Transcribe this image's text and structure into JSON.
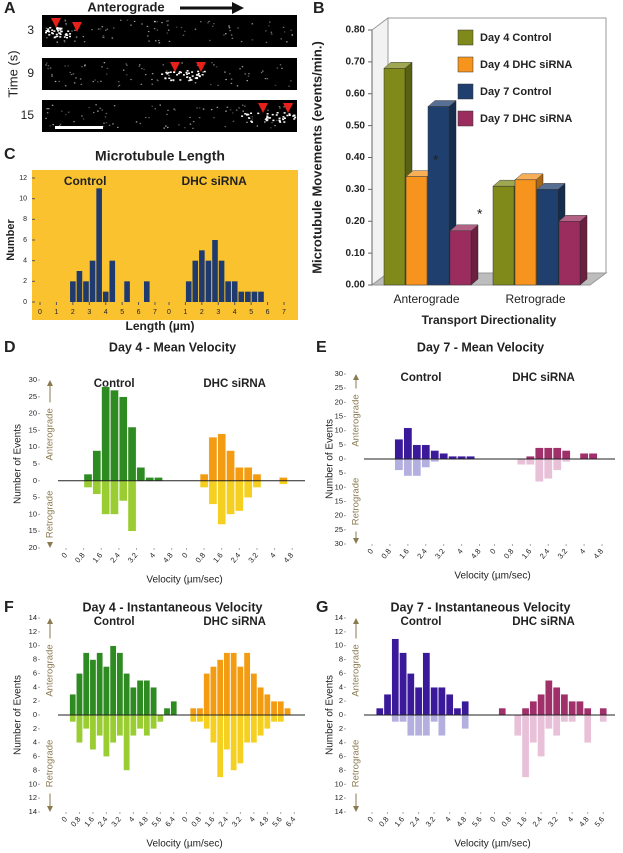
{
  "panel_a": {
    "letter": "A",
    "title": "Anterograde",
    "y_label": "Time (s)",
    "times": [
      3,
      9,
      15
    ]
  },
  "chart_data": [
    {
      "panel": "B",
      "type": "bar3d",
      "y_label": "Microtubule Movements (events/min.)",
      "x_label": "Transport Directionality",
      "categories": [
        "Anterograde",
        "Retrograde"
      ],
      "series": [
        {
          "name": "Day 4 Control",
          "color": "#7f8a1a",
          "values": [
            0.68,
            0.31
          ]
        },
        {
          "name": "Day 4 DHC siRNA",
          "color": "#f7941d",
          "values": [
            0.34,
            0.33
          ]
        },
        {
          "name": "Day 7 Control",
          "color": "#1f3f6e",
          "values": [
            0.56,
            0.3
          ]
        },
        {
          "name": "Day 7 DHC siRNA",
          "color": "#9b2d5e",
          "values": [
            0.17,
            0.2
          ]
        }
      ],
      "ylim": [
        0,
        0.8
      ],
      "yticks": [
        {
          "value": 0,
          "label": "0.00"
        },
        {
          "value": 0.1,
          "label": "0.10"
        },
        {
          "value": 0.2,
          "label": "0.20"
        },
        {
          "value": 0.3,
          "label": "0.30"
        },
        {
          "value": 0.4,
          "label": "0.40"
        },
        {
          "value": 0.5,
          "label": "0.50"
        },
        {
          "value": 0.6,
          "label": "0.60"
        },
        {
          "value": 0.7,
          "label": "0.70"
        },
        {
          "value": 0.8,
          "label": "0.80"
        }
      ],
      "legend": "top-right",
      "annotations": [
        {
          "text": "*",
          "series": "Day 4 DHC siRNA",
          "category": "Anterograde"
        },
        {
          "text": "*",
          "series": "Day 7 DHC siRNA",
          "category": "Anterograde"
        }
      ]
    },
    {
      "panel": "C",
      "type": "histogram",
      "title": "Microtubule Length",
      "x_label": "Length (µm)",
      "y_label": "Number",
      "background": "#f9c22e",
      "ylim": [
        0,
        12
      ],
      "yticks": [
        0,
        2,
        4,
        6,
        8,
        10,
        12
      ],
      "groups": [
        {
          "name": "Control",
          "color": "#1f3a6e",
          "xlim": [
            0,
            7
          ],
          "xticks": [
            0,
            1,
            2,
            3,
            4,
            5,
            6,
            7
          ],
          "x": [
            2.0,
            2.4,
            2.8,
            3.2,
            3.6,
            4.0,
            4.4,
            5.3,
            6.5
          ],
          "values": [
            2,
            3,
            2,
            4,
            11,
            1,
            4,
            2,
            2
          ]
        },
        {
          "name": "DHC siRNA",
          "color": "#1f3a6e",
          "xlim": [
            0,
            7
          ],
          "xticks": [
            0,
            1,
            2,
            3,
            4,
            5,
            6,
            7
          ],
          "x": [
            1.2,
            1.6,
            2.0,
            2.4,
            2.8,
            3.2,
            3.6,
            4.0,
            4.4,
            4.8,
            5.2,
            5.6
          ],
          "values": [
            2,
            4,
            5,
            4,
            6,
            4,
            2,
            2,
            1,
            1,
            1,
            1
          ]
        }
      ]
    },
    {
      "panel": "D",
      "type": "mirrored",
      "title": "Day 4 - Mean Velocity",
      "y_label": "Number of Events",
      "x_label": "Velocity (µm/sec)",
      "up_label": "Anterograde",
      "down_label": "Retrograde",
      "ylim": [
        -20,
        30
      ],
      "yticks": [
        30,
        25,
        20,
        15,
        10,
        5,
        0,
        {
          "value": -5,
          "label": "5"
        },
        {
          "value": -10,
          "label": "10"
        },
        {
          "value": -15,
          "label": "15"
        },
        {
          "value": -20,
          "label": "20"
        }
      ],
      "groups": [
        {
          "name": "Control",
          "xlim": [
            0,
            5.2
          ],
          "xticks": [
            0,
            0.8,
            1.6,
            2.4,
            3.2,
            4,
            4.8
          ],
          "x": [
            1.0,
            1.4,
            1.8,
            2.2,
            2.6,
            3.0,
            3.4,
            3.8,
            4.2
          ],
          "up": {
            "color": "#2e8b22",
            "values": [
              2,
              9,
              28,
              27,
              25,
              16,
              4,
              1,
              1
            ]
          },
          "down": {
            "color": "#9acd32",
            "values": [
              -2,
              -4,
              -10,
              -10,
              -6,
              -15,
              0,
              0,
              0
            ]
          }
        },
        {
          "name": "DHC siRNA",
          "xlim": [
            0,
            5.2
          ],
          "xticks": [
            0,
            0.8,
            1.6,
            2.4,
            3.2,
            4,
            4.8
          ],
          "x": [
            0.8,
            1.2,
            1.6,
            2.0,
            2.4,
            2.8,
            3.2,
            3.6,
            4.4
          ],
          "up": {
            "color": "#f39c12",
            "values": [
              2,
              13,
              14,
              9,
              4,
              4,
              2,
              0,
              1
            ]
          },
          "down": {
            "color": "#f5d020",
            "values": [
              -2,
              -7,
              -13,
              -10,
              -9,
              -5,
              -2,
              0,
              -1
            ]
          }
        }
      ]
    },
    {
      "panel": "E",
      "type": "mirrored",
      "title": "Day 7 - Mean Velocity",
      "y_label": "Number of Events",
      "x_label": "Velocity (µm/sec)",
      "up_label": "Anterograde",
      "down_label": "Retrograde",
      "ylim": [
        -30,
        30
      ],
      "yticks": [
        30,
        25,
        20,
        15,
        10,
        5,
        0,
        {
          "value": -5,
          "label": "5"
        },
        {
          "value": -10,
          "label": "10"
        },
        {
          "value": -15,
          "label": "15"
        },
        {
          "value": -20,
          "label": "20"
        },
        {
          "value": -25,
          "label": "25"
        },
        {
          "value": -30,
          "label": "30"
        }
      ],
      "groups": [
        {
          "name": "Control",
          "xlim": [
            0,
            5.2
          ],
          "xticks": [
            0,
            0.8,
            1.6,
            2.4,
            3.2,
            4,
            4.8
          ],
          "x": [
            1.2,
            1.6,
            2.0,
            2.4,
            2.8,
            3.2,
            3.6,
            4.0,
            4.4
          ],
          "up": {
            "color": "#3a1a9a",
            "values": [
              7,
              11,
              5,
              5,
              3,
              2,
              1,
              1,
              1
            ]
          },
          "down": {
            "color": "#b3b0e0",
            "values": [
              -4,
              -6,
              -6,
              -3,
              -1,
              0,
              0,
              0,
              0
            ]
          }
        },
        {
          "name": "DHC siRNA",
          "xlim": [
            0,
            5.2
          ],
          "xticks": [
            0,
            0.8,
            1.6,
            2.4,
            3.2,
            4,
            4.8
          ],
          "x": [
            1.2,
            1.6,
            2.0,
            2.4,
            2.8,
            3.2,
            3.6,
            4.0,
            4.4
          ],
          "up": {
            "color": "#a0306a",
            "values": [
              0,
              1,
              4,
              4,
              4,
              3,
              0,
              2,
              2
            ]
          },
          "down": {
            "color": "#e8c0d8",
            "values": [
              -2,
              -2,
              -8,
              -7,
              -4,
              -1,
              0,
              0,
              0
            ]
          }
        }
      ]
    },
    {
      "panel": "F",
      "type": "mirrored",
      "title": "Day 4 - Instantaneous Velocity",
      "y_label": "Number of Events",
      "x_label": "Velocity (µm/sec)",
      "up_label": "Anterograde",
      "down_label": "Retrograde",
      "ylim": [
        -14,
        14
      ],
      "yticks": [
        14,
        12,
        10,
        8,
        6,
        4,
        2,
        0,
        {
          "value": -2,
          "label": "2"
        },
        {
          "value": -4,
          "label": "4"
        },
        {
          "value": -6,
          "label": "6"
        },
        {
          "value": -8,
          "label": "8"
        },
        {
          "value": -10,
          "label": "10"
        },
        {
          "value": -12,
          "label": "12"
        },
        {
          "value": -14,
          "label": "14"
        }
      ],
      "groups": [
        {
          "name": "Control",
          "xlim": [
            0,
            6.8
          ],
          "xticks": [
            0,
            0.8,
            1.6,
            2.4,
            3.2,
            4,
            4.8,
            5.6,
            6.4
          ],
          "x": [
            0.4,
            0.8,
            1.2,
            1.6,
            2.0,
            2.4,
            2.8,
            3.2,
            3.6,
            4.0,
            4.4,
            4.8,
            5.2,
            5.6,
            6.0,
            6.4
          ],
          "up": {
            "color": "#2e8b22",
            "values": [
              3,
              6,
              9,
              8,
              9,
              7,
              10,
              9,
              6,
              4,
              5,
              5,
              4,
              0,
              1,
              2
            ]
          },
          "down": {
            "color": "#9acd32",
            "values": [
              -1,
              -4,
              -2,
              -5,
              -3,
              -6,
              -4,
              -3,
              -8,
              -3,
              -2,
              -3,
              -2,
              -1,
              0,
              0
            ]
          }
        },
        {
          "name": "DHC siRNA",
          "xlim": [
            0,
            6.8
          ],
          "xticks": [
            0,
            0.8,
            1.6,
            2.4,
            3.2,
            4,
            4.8,
            5.6,
            6.4
          ],
          "x": [
            0.4,
            0.8,
            1.2,
            1.6,
            2.0,
            2.4,
            2.8,
            3.2,
            3.6,
            4.0,
            4.4,
            4.8,
            5.2,
            5.6,
            6.0,
            6.4
          ],
          "up": {
            "color": "#f39c12",
            "values": [
              1,
              1,
              6,
              7,
              8,
              9,
              9,
              7,
              9,
              6,
              4,
              3,
              2,
              2,
              1,
              0
            ]
          },
          "down": {
            "color": "#f5d020",
            "values": [
              -1,
              -1,
              -2,
              -4,
              -9,
              -5,
              -8,
              -7,
              -4,
              -4,
              -3,
              -2,
              -1,
              -1,
              0,
              0
            ]
          }
        }
      ]
    },
    {
      "panel": "G",
      "type": "mirrored",
      "title": "Day 7 - Instantaneous Velocity",
      "y_label": "Number of Events",
      "x_label": "Velocity (µm/sec)",
      "up_label": "Anterograde",
      "down_label": "Retrograde",
      "ylim": [
        -14,
        14
      ],
      "yticks": [
        14,
        12,
        10,
        8,
        6,
        4,
        2,
        0,
        {
          "value": -2,
          "label": "2"
        },
        {
          "value": -4,
          "label": "4"
        },
        {
          "value": -6,
          "label": "6"
        },
        {
          "value": -8,
          "label": "8"
        },
        {
          "value": -10,
          "label": "10"
        },
        {
          "value": -12,
          "label": "12"
        },
        {
          "value": -14,
          "label": "14"
        }
      ],
      "groups": [
        {
          "name": "Control",
          "xlim": [
            0,
            6.0
          ],
          "xticks": [
            0,
            0.8,
            1.6,
            2.4,
            3.2,
            4,
            4.8,
            5.6
          ],
          "x": [
            0.4,
            0.8,
            1.2,
            1.6,
            2.0,
            2.4,
            2.8,
            3.2,
            3.6,
            4.0,
            4.4,
            4.8,
            5.2,
            5.6
          ],
          "up": {
            "color": "#3a1a9a",
            "values": [
              1,
              3,
              11,
              9,
              6,
              4,
              9,
              4,
              4,
              3,
              1,
              2,
              0,
              0
            ]
          },
          "down": {
            "color": "#b3b0e0",
            "values": [
              0,
              0,
              -1,
              -1,
              -3,
              -3,
              -3,
              -1,
              -3,
              0,
              0,
              -2,
              0,
              0
            ]
          }
        },
        {
          "name": "DHC siRNA",
          "xlim": [
            0,
            6.0
          ],
          "xticks": [
            0,
            0.8,
            1.6,
            2.4,
            3.2,
            4,
            4.8,
            5.6
          ],
          "x": [
            0.4,
            0.8,
            1.2,
            1.6,
            2.0,
            2.4,
            2.8,
            3.2,
            3.6,
            4.0,
            4.4,
            4.8,
            5.2,
            5.6
          ],
          "up": {
            "color": "#a0306a",
            "values": [
              1,
              0,
              0,
              1,
              2,
              3,
              5,
              4,
              3,
              2,
              2,
              1,
              0,
              1
            ]
          },
          "down": {
            "color": "#e8c0d8",
            "values": [
              0,
              0,
              -3,
              -9,
              -4,
              -6,
              -2,
              -3,
              -1,
              -1,
              0,
              -4,
              0,
              -1
            ]
          }
        }
      ]
    }
  ]
}
